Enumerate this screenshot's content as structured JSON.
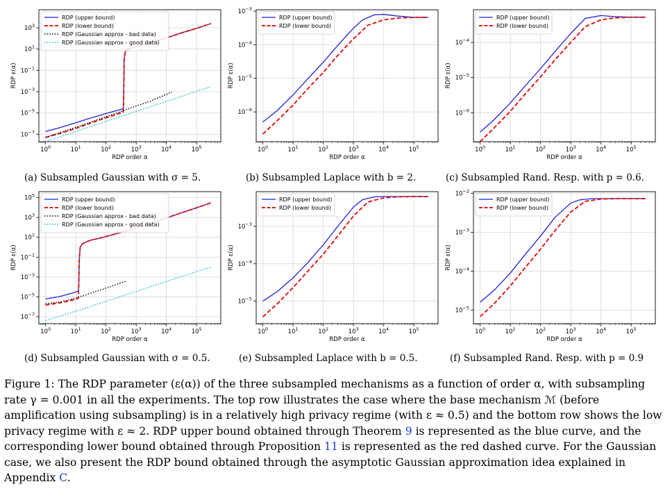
{
  "chart_data": [
    {
      "id": "a",
      "type": "line",
      "scale": "log-log",
      "xlabel": "RDP order α",
      "ylabel": "RDP ε(α)",
      "xlim": [
        0.6,
        630000
      ],
      "ylim": [
        2e-08,
        50000
      ],
      "xticks": [
        1,
        10,
        100,
        1000,
        10000,
        100000
      ],
      "xtick_labels": [
        "10^0",
        "10^1",
        "10^2",
        "10^3",
        "10^4",
        "10^5"
      ],
      "yticks": [
        1e-07,
        1e-05,
        0.001,
        0.1,
        10,
        1000
      ],
      "ytick_labels": [
        "10^-7",
        "10^-5",
        "10^-3",
        "10^-1",
        "10^1",
        "10^3"
      ],
      "legend": "top-left",
      "grid": true,
      "series": [
        {
          "name": "RDP (upper bound)",
          "style": "solid",
          "color": "#1f1fd6",
          "x": [
            1,
            3,
            10,
            30,
            100,
            200,
            370,
            380,
            400,
            430,
            500,
            700,
            1000,
            3000,
            10000,
            30000,
            100000,
            300000
          ],
          "y": [
            1.8e-07,
            4.2e-07,
            1.2e-06,
            3.2e-06,
            9e-06,
            1.5e-05,
            2.5e-05,
            5e-05,
            1,
            5,
            9,
            13,
            18,
            40,
            110,
            320,
            900,
            2500
          ]
        },
        {
          "name": "RDP (lower bound)",
          "style": "dashed",
          "color": "#e0191c",
          "x": [
            1,
            3,
            10,
            30,
            100,
            200,
            370,
            380,
            400,
            430,
            500,
            700,
            1000,
            3000,
            10000,
            30000,
            100000,
            300000
          ],
          "y": [
            5e-08,
            1.2e-07,
            3.5e-07,
            1.1e-06,
            3.5e-06,
            6.5e-06,
            1.2e-05,
            5e-05,
            1,
            5,
            9,
            13,
            18,
            40,
            110,
            320,
            900,
            2500
          ]
        },
        {
          "name": "RDP (Gaussian approx - bad data)",
          "style": "dotted",
          "color": "#000000",
          "x": [
            1,
            3,
            10,
            30,
            100,
            300,
            1000,
            3000,
            10000,
            15000
          ],
          "y": [
            5e-08,
            1.4e-07,
            4.5e-07,
            1.3e-06,
            4.5e-06,
            1.3e-05,
            4.5e-05,
            0.00013,
            0.00055,
            0.00095
          ]
        },
        {
          "name": "RDP (Gaussian approx - good data)",
          "style": "dotted",
          "color": "#17becf",
          "x": [
            1,
            10,
            100,
            1000,
            10000,
            100000,
            300000
          ],
          "y": [
            2e-08,
            1.8e-07,
            1.6e-06,
            1.4e-05,
            0.00012,
            0.0011,
            0.003
          ]
        }
      ]
    },
    {
      "id": "b",
      "type": "line",
      "scale": "log-log",
      "xlabel": "RDP order α",
      "ylabel": "RDP ε(α)",
      "xlim": [
        0.6,
        630000
      ],
      "ylim": [
        1.3e-07,
        0.0011
      ],
      "xticks": [
        1,
        10,
        100,
        1000,
        10000,
        100000
      ],
      "xtick_labels": [
        "10^0",
        "10^1",
        "10^2",
        "10^3",
        "10^4",
        "10^5"
      ],
      "yticks": [
        1e-06,
        1e-05,
        0.0001,
        0.001
      ],
      "ytick_labels": [
        "10^-6",
        "10^-5",
        "10^-4",
        "10^-3"
      ],
      "legend": "top-left",
      "grid": true,
      "series": [
        {
          "name": "RDP (upper bound)",
          "style": "solid",
          "color": "#1f1fd6",
          "x": [
            1,
            3,
            10,
            30,
            100,
            300,
            1000,
            2000,
            5000,
            10000,
            30000,
            100000,
            300000
          ],
          "y": [
            5e-07,
            1.1e-06,
            3.2e-06,
            9.5e-06,
            3e-05,
            9.5e-05,
            0.00031,
            0.00055,
            0.00078,
            0.0008,
            0.00071,
            0.00065,
            0.00065
          ]
        },
        {
          "name": "RDP (lower bound)",
          "style": "dashed",
          "color": "#e0191c",
          "x": [
            1,
            3,
            10,
            30,
            100,
            300,
            1000,
            3000,
            10000,
            30000,
            100000,
            300000
          ],
          "y": [
            2.2e-07,
            5.5e-07,
            1.6e-06,
            4.8e-06,
            1.5e-05,
            4.8e-05,
            0.00015,
            0.00038,
            0.00055,
            0.00062,
            0.00065,
            0.00065
          ]
        }
      ]
    },
    {
      "id": "c",
      "type": "line",
      "scale": "log-log",
      "xlabel": "RDP order α",
      "ylabel": "RDP ε(α)",
      "xlim": [
        0.6,
        630000
      ],
      "ylim": [
        1.5e-07,
        0.00085
      ],
      "xticks": [
        1,
        10,
        100,
        1000,
        10000,
        100000
      ],
      "xtick_labels": [
        "10^0",
        "10^1",
        "10^2",
        "10^3",
        "10^4",
        "10^5"
      ],
      "yticks": [
        1e-06,
        1e-05,
        0.0001
      ],
      "ytick_labels": [
        "10^-6",
        "10^-5",
        "10^-4"
      ],
      "legend": "top-left",
      "grid": true,
      "series": [
        {
          "name": "RDP (upper bound)",
          "style": "solid",
          "color": "#1f1fd6",
          "x": [
            1,
            3,
            10,
            30,
            100,
            300,
            1000,
            3000,
            10000,
            30000,
            100000,
            300000
          ],
          "y": [
            2.8e-07,
            6.5e-07,
            1.9e-06,
            5.6e-06,
            1.8e-05,
            5.5e-05,
            0.00018,
            0.00048,
            0.00058,
            0.00054,
            0.00052,
            0.00052
          ]
        },
        {
          "name": "RDP (lower bound)",
          "style": "dashed",
          "color": "#e0191c",
          "x": [
            1,
            3,
            10,
            30,
            100,
            300,
            1000,
            3000,
            10000,
            30000,
            100000,
            300000
          ],
          "y": [
            1.5e-07,
            3.8e-07,
            1.1e-06,
            3.3e-06,
            1.05e-05,
            3.2e-05,
            0.0001,
            0.00028,
            0.00044,
            0.0005,
            0.00052,
            0.00052
          ]
        }
      ]
    },
    {
      "id": "d",
      "type": "line",
      "scale": "log-log",
      "xlabel": "RDP order α",
      "ylabel": "RDP ε(α)",
      "xlim": [
        0.6,
        630000
      ],
      "ylim": [
        2e-08,
        400000
      ],
      "xticks": [
        1,
        10,
        100,
        1000,
        10000,
        100000
      ],
      "xtick_labels": [
        "10^0",
        "10^1",
        "10^2",
        "10^3",
        "10^4",
        "10^5"
      ],
      "yticks": [
        1e-07,
        1e-05,
        0.001,
        0.1,
        10,
        1000,
        100000
      ],
      "ytick_labels": [
        "10^-7",
        "10^-5",
        "10^-3",
        "10^-1",
        "10^1",
        "10^3",
        "10^5"
      ],
      "legend": "top-left",
      "grid": true,
      "series": [
        {
          "name": "RDP (upper bound)",
          "style": "solid",
          "color": "#1f1fd6",
          "x": [
            1,
            3,
            10,
            12,
            12.5,
            13,
            14,
            16,
            20,
            30,
            50,
            100,
            300,
            1000,
            3000,
            10000,
            30000,
            100000,
            300000
          ],
          "y": [
            6e-06,
            1.1e-05,
            3e-05,
            4e-05,
            0.0001,
            0.05,
            1,
            2,
            3,
            5,
            7,
            12,
            30,
            90,
            270,
            900,
            2800,
            9500,
            30000
          ]
        },
        {
          "name": "RDP (lower bound)",
          "style": "dashed",
          "color": "#e0191c",
          "x": [
            1,
            3,
            10,
            12,
            12.5,
            13,
            14,
            16,
            20,
            30,
            50,
            100,
            300,
            1000,
            3000,
            10000,
            30000,
            100000,
            300000
          ],
          "y": [
            1.5e-06,
            2.5e-06,
            5.5e-06,
            7e-06,
            0.0001,
            0.05,
            1,
            2,
            3,
            5,
            7,
            12,
            30,
            90,
            270,
            900,
            2800,
            9500,
            30000
          ]
        },
        {
          "name": "RDP (Gaussian approx - bad data)",
          "style": "dotted",
          "color": "#000000",
          "x": [
            1,
            3,
            10,
            30,
            100,
            300,
            500
          ],
          "y": [
            2e-06,
            3e-06,
            7.5e-06,
            2.2e-05,
            7.5e-05,
            0.00025,
            0.0004
          ]
        },
        {
          "name": "RDP (Gaussian approx - good data)",
          "style": "dotted",
          "color": "#17becf",
          "x": [
            1,
            10,
            100,
            1000,
            10000,
            100000,
            300000
          ],
          "y": [
            4e-08,
            3.5e-07,
            3.5e-06,
            3.5e-05,
            0.00035,
            0.0035,
            0.01
          ]
        }
      ]
    },
    {
      "id": "e",
      "type": "line",
      "scale": "log-log",
      "xlabel": "RDP order α",
      "ylabel": "RDP ε(α)",
      "xlim": [
        0.6,
        630000
      ],
      "ylim": [
        2.5e-06,
        0.0085
      ],
      "xticks": [
        1,
        10,
        100,
        1000,
        10000,
        100000
      ],
      "xtick_labels": [
        "10^0",
        "10^1",
        "10^2",
        "10^3",
        "10^4",
        "10^5"
      ],
      "yticks": [
        1e-05,
        0.0001,
        0.001
      ],
      "ytick_labels": [
        "10^-5",
        "10^-4",
        "10^-3"
      ],
      "legend": "top-left",
      "grid": true,
      "series": [
        {
          "name": "RDP (upper bound)",
          "style": "solid",
          "color": "#1f1fd6",
          "x": [
            1,
            3,
            10,
            30,
            100,
            300,
            1000,
            2000,
            5000,
            10000,
            30000,
            100000,
            300000
          ],
          "y": [
            1e-05,
            1.8e-05,
            4.2e-05,
            0.000105,
            0.00032,
            0.001,
            0.0033,
            0.0052,
            0.0062,
            0.0063,
            0.0063,
            0.0063,
            0.0063
          ]
        },
        {
          "name": "RDP (lower bound)",
          "style": "dashed",
          "color": "#e0191c",
          "x": [
            1,
            3,
            10,
            30,
            100,
            300,
            1000,
            3000,
            10000,
            30000,
            100000,
            300000
          ],
          "y": [
            3.8e-06,
            8.5e-06,
            2.3e-05,
            6.2e-05,
            0.00018,
            0.00055,
            0.0019,
            0.0045,
            0.0058,
            0.0062,
            0.0063,
            0.0063
          ]
        }
      ]
    },
    {
      "id": "f",
      "type": "line",
      "scale": "log-log",
      "xlabel": "RDP order α",
      "ylabel": "RDP ε(α)",
      "xlim": [
        0.6,
        630000
      ],
      "ylim": [
        4.5e-06,
        0.011
      ],
      "xticks": [
        1,
        10,
        100,
        1000,
        10000,
        100000
      ],
      "xtick_labels": [
        "10^0",
        "10^1",
        "10^2",
        "10^3",
        "10^4",
        "10^5"
      ],
      "yticks": [
        1e-05,
        0.0001,
        0.001,
        0.01
      ],
      "ytick_labels": [
        "10^-5",
        "10^-4",
        "10^-3",
        "10^-2"
      ],
      "legend": "top-left",
      "grid": true,
      "series": [
        {
          "name": "RDP (upper bound)",
          "style": "solid",
          "color": "#1f1fd6",
          "x": [
            1,
            3,
            10,
            30,
            100,
            300,
            1000,
            2000,
            5000,
            10000,
            30000,
            100000,
            300000
          ],
          "y": [
            1.6e-05,
            3.3e-05,
            9e-05,
            0.00026,
            0.0008,
            0.0024,
            0.0056,
            0.0068,
            0.0073,
            0.0073,
            0.0073,
            0.0073,
            0.0073
          ]
        },
        {
          "name": "RDP (lower bound)",
          "style": "dashed",
          "color": "#e0191c",
          "x": [
            1,
            3,
            10,
            30,
            100,
            300,
            1000,
            3000,
            10000,
            30000,
            100000,
            300000
          ],
          "y": [
            6.8e-06,
            1.5e-05,
            4.2e-05,
            0.00012,
            0.00037,
            0.0011,
            0.0033,
            0.0062,
            0.0071,
            0.0073,
            0.0073,
            0.0073
          ]
        }
      ]
    }
  ],
  "subcaptions": {
    "a": "(a) Subsampled Gaussian with σ = 5.",
    "b": "(b) Subsampled Laplace with b = 2.",
    "c": "(c) Subsampled Rand. Resp. with p = 0.6.",
    "d": "(d) Subsampled Gaussian with σ = 0.5.",
    "e": "(e) Subsampled Laplace with b = 0.5.",
    "f": "(f) Subsampled Rand. Resp. with p = 0.9"
  },
  "figure_caption": {
    "text_1": "Figure 1: The RDP parameter (ε(α)) of the three subsampled mechanisms as a function of order α, with subsampling rate γ = 0.001 in all the experiments. The top row illustrates the case where the base mechanism ℳ (before amplification using subsampling) is in a relatively high privacy regime (with ε ≈ 0.5) and the bottom row shows the low privacy regime with ε ≈ 2. RDP upper bound obtained through Theorem ",
    "ref_theorem": "9",
    "text_2": " is represented as the blue curve, and the corresponding lower bound obtained through Proposition ",
    "ref_proposition": "11",
    "text_3": " is represented as the red dashed curve. For the Gaussian case, we also present the RDP bound obtained through the asymptotic Gaussian approximation idea explained in Appendix ",
    "ref_appendix": "C",
    "text_4": "."
  }
}
